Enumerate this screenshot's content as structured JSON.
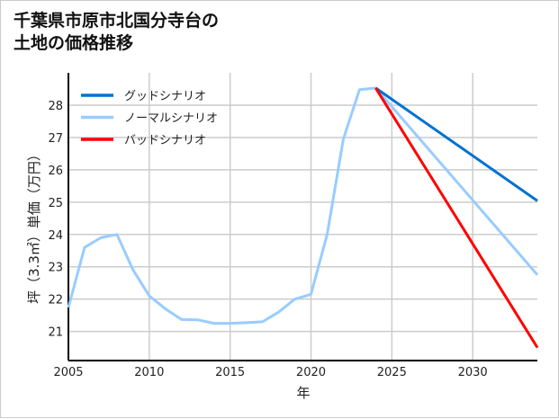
{
  "chart_data": {
    "type": "line",
    "title_lines": [
      "千葉県市原市北国分寺台の",
      "土地の価格推移"
    ],
    "xlabel": "年",
    "ylabel": "坪（3.3㎡）単価（万円）",
    "xlim": [
      2005,
      2034
    ],
    "ylim": [
      20.1,
      29
    ],
    "xticks": [
      2005,
      2010,
      2015,
      2020,
      2025,
      2030
    ],
    "yticks": [
      21,
      22,
      23,
      24,
      25,
      26,
      27,
      28
    ],
    "grid": true,
    "legend_position": "top-left",
    "series": [
      {
        "name": "グッドシナリオ",
        "color": "#0072cf",
        "x": [
          2024,
          2034
        ],
        "y": [
          28.53,
          25.04
        ]
      },
      {
        "name": "ノーマルシナリオ",
        "color": "#99ccff",
        "x": [
          2005,
          2006,
          2007,
          2008,
          2009,
          2010,
          2011,
          2012,
          2013,
          2014,
          2015,
          2016,
          2017,
          2018,
          2019,
          2020,
          2021,
          2022,
          2023,
          2024,
          2034
        ],
        "y": [
          21.74,
          23.6,
          23.9,
          24.0,
          22.9,
          22.1,
          21.7,
          21.37,
          21.36,
          21.25,
          21.25,
          21.27,
          21.3,
          21.6,
          22.0,
          22.15,
          24.0,
          26.95,
          28.48,
          28.53,
          22.75
        ]
      },
      {
        "name": "バッドシナリオ",
        "color": "#ff0000",
        "x": [
          2024,
          2034
        ],
        "y": [
          28.53,
          20.5
        ]
      }
    ]
  }
}
